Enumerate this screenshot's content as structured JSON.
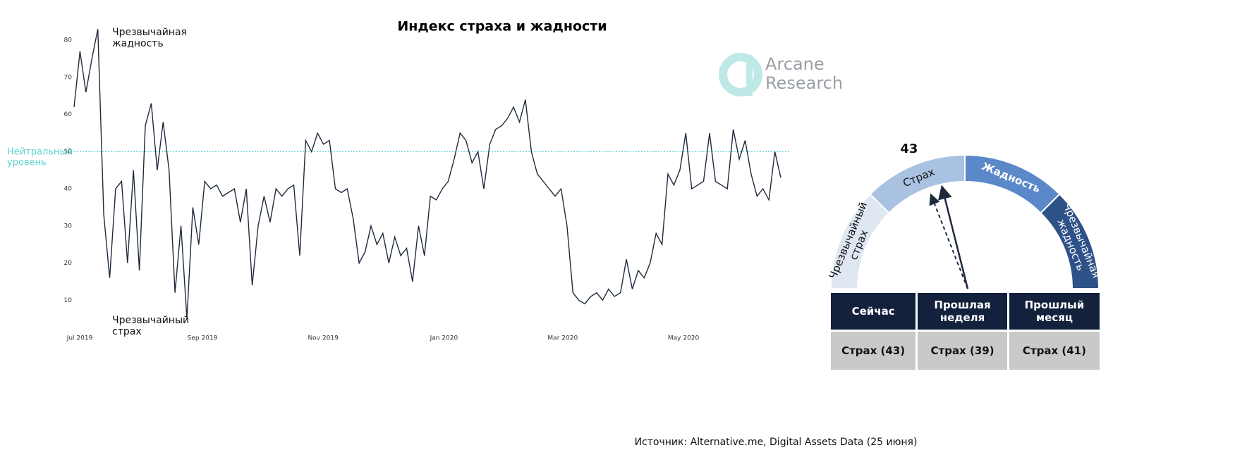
{
  "chart_data": [
    {
      "type": "line",
      "title": "Индекс страха и жадности",
      "color": "#1e2a3c",
      "values": [
        62,
        77,
        66,
        75,
        83,
        33,
        16,
        40,
        42,
        20,
        45,
        18,
        57,
        63,
        45,
        58,
        45,
        12,
        30,
        5,
        35,
        25,
        42,
        40,
        41,
        38,
        39,
        40,
        31,
        40,
        14,
        30,
        38,
        31,
        40,
        38,
        40,
        41,
        22,
        53,
        50,
        55,
        52,
        53,
        40,
        39,
        40,
        32,
        20,
        23,
        30,
        25,
        28,
        20,
        27,
        22,
        24,
        15,
        30,
        22,
        38,
        37,
        40,
        42,
        48,
        55,
        53,
        47,
        50,
        40,
        52,
        56,
        57,
        59,
        62,
        58,
        64,
        50,
        44,
        42,
        40,
        38,
        40,
        30,
        12,
        10,
        9,
        11,
        12,
        10,
        13,
        11,
        12,
        21,
        13,
        18,
        16,
        20,
        28,
        25,
        44,
        41,
        45,
        55,
        40,
        41,
        42,
        55,
        42,
        41,
        40,
        56,
        48,
        53,
        44,
        38,
        40,
        37,
        50,
        43
      ],
      "xlim": [
        0,
        119
      ],
      "ylim": [
        0,
        88
      ],
      "xticks": [
        {
          "value": 0,
          "label": "Jul 2019"
        },
        {
          "value": 20.67,
          "label": "Sep 2019"
        },
        {
          "value": 41,
          "label": "Nov 2019"
        },
        {
          "value": 61.33,
          "label": "Jan 2020"
        },
        {
          "value": 81.33,
          "label": "Mar 2020"
        },
        {
          "value": 101.67,
          "label": "May 2020"
        }
      ],
      "yticks": [
        10,
        20,
        30,
        40,
        50,
        60,
        70,
        80
      ],
      "neutral": {
        "value": 50,
        "color": "#5fd3d3",
        "lines": [
          "Нейтральный",
          "уровень"
        ]
      },
      "annotations": [
        {
          "lines": [
            "Чрезвычайная",
            "жадность"
          ]
        },
        {
          "lines": [
            "Чрезвычайный",
            "страх"
          ]
        }
      ]
    },
    {
      "type": "gauge",
      "value": 43,
      "previous": 39,
      "segments": [
        {
          "lines": [
            "Чрезвычайный",
            "страх"
          ],
          "start": 0,
          "end": 25,
          "color": "#dfe7f3"
        },
        {
          "lines": [
            "Страх"
          ],
          "start": 25,
          "end": 50,
          "color": "#aac2e2"
        },
        {
          "lines": [
            "Жадность"
          ],
          "start": 50,
          "end": 75,
          "color": "#5b88c8"
        },
        {
          "lines": [
            "Чрезвычайная",
            "жадность"
          ],
          "start": 75,
          "end": 100,
          "color": "#2e5288"
        }
      ]
    }
  ],
  "table": {
    "header": [
      "Сейчас",
      "Прошлая неделя",
      "Прошлый месяц"
    ],
    "rows": [
      [
        "Страх (43)",
        "Страх (39)",
        "Страх (41)"
      ]
    ]
  },
  "watermark": [
    "Arcane",
    "Research"
  ],
  "source": "Источник: Alternative.me, Digital Assets Data (25 июня)"
}
